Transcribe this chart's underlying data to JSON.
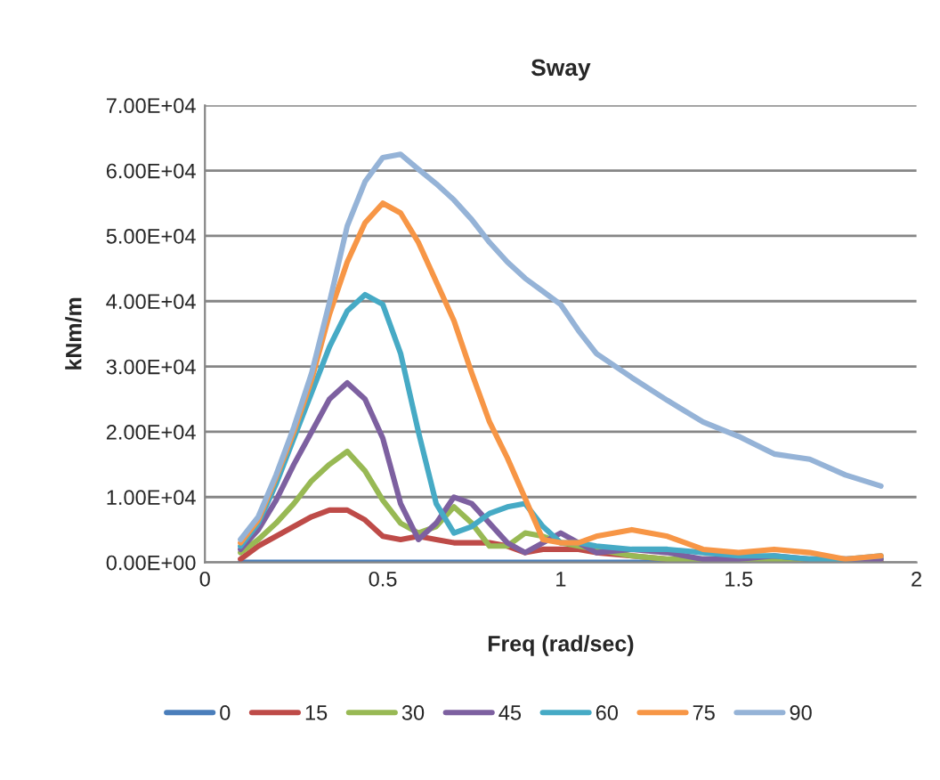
{
  "chart_data": {
    "type": "line",
    "title": "Sway",
    "xlabel": "Freq (rad/sec)",
    "ylabel": "kNm/m",
    "x": [
      0.1,
      0.15,
      0.2,
      0.25,
      0.3,
      0.35,
      0.4,
      0.45,
      0.5,
      0.55,
      0.6,
      0.65,
      0.7,
      0.75,
      0.8,
      0.85,
      0.9,
      0.95,
      1.0,
      1.05,
      1.1,
      1.2,
      1.3,
      1.4,
      1.5,
      1.6,
      1.7,
      1.8,
      1.9
    ],
    "series": [
      {
        "name": "0",
        "color": "#4a7ebb",
        "values": [
          0,
          0,
          0,
          0,
          0,
          0,
          0,
          0,
          0,
          0,
          0,
          0,
          0,
          0,
          0,
          0,
          0,
          0,
          0,
          0,
          0,
          0,
          0,
          0,
          0,
          0,
          0,
          0,
          0
        ]
      },
      {
        "name": "15",
        "color": "#be4b48",
        "values": [
          500,
          2500,
          4000,
          5500,
          7000,
          8000,
          8000,
          6500,
          4000,
          3500,
          4000,
          3500,
          3000,
          3000,
          3000,
          2500,
          1500,
          2000,
          2000,
          2000,
          1500,
          1000,
          500,
          0,
          0,
          0,
          0,
          0,
          0
        ]
      },
      {
        "name": "30",
        "color": "#98b954",
        "values": [
          1500,
          3500,
          6000,
          9000,
          12500,
          15000,
          17000,
          14000,
          9500,
          6000,
          4500,
          5500,
          8500,
          6000,
          2500,
          2500,
          4500,
          4000,
          3000,
          2500,
          2000,
          1000,
          500,
          500,
          500,
          500,
          500,
          0,
          500
        ]
      },
      {
        "name": "45",
        "color": "#7d60a0",
        "values": [
          2000,
          5000,
          9500,
          15000,
          20000,
          25000,
          27500,
          25000,
          19000,
          9000,
          3500,
          6000,
          10000,
          9000,
          6000,
          3000,
          1500,
          3000,
          4500,
          3000,
          1500,
          2000,
          1500,
          500,
          500,
          1000,
          500,
          500,
          500
        ]
      },
      {
        "name": "60",
        "color": "#46aac5",
        "values": [
          2500,
          6000,
          12000,
          19000,
          26000,
          33000,
          38500,
          41000,
          39500,
          32000,
          20000,
          9000,
          4500,
          5500,
          7500,
          8500,
          9000,
          5500,
          3000,
          3000,
          2500,
          2000,
          2000,
          1500,
          1000,
          1000,
          500,
          500,
          1000
        ]
      },
      {
        "name": "75",
        "color": "#f79646",
        "values": [
          3000,
          6500,
          13000,
          20000,
          28000,
          38000,
          46000,
          52000,
          55000,
          53500,
          49000,
          43000,
          37000,
          29000,
          21500,
          16000,
          9800,
          3500,
          3000,
          3000,
          4000,
          5000,
          4000,
          2000,
          1500,
          2000,
          1500,
          500,
          1000
        ]
      },
      {
        "name": "90",
        "color": "#95b3d7",
        "values": [
          3500,
          7000,
          13400,
          20700,
          29000,
          39800,
          51500,
          58300,
          62000,
          62500,
          60200,
          58000,
          55500,
          52500,
          49000,
          46000,
          43500,
          41500,
          39500,
          35500,
          32000,
          28300,
          24800,
          21500,
          19300,
          16600,
          15800,
          13400,
          11700
        ]
      }
    ],
    "xlim": [
      0,
      2
    ],
    "xticks": [
      0,
      0.5,
      1,
      1.5,
      2
    ],
    "ylim": [
      0,
      70000
    ],
    "yticks": [
      {
        "value": 0,
        "label": "0.00E+00"
      },
      {
        "value": 10000,
        "label": "1.00E+04"
      },
      {
        "value": 20000,
        "label": "2.00E+04"
      },
      {
        "value": 30000,
        "label": "3.00E+04"
      },
      {
        "value": 40000,
        "label": "4.00E+04"
      },
      {
        "value": 50000,
        "label": "5.00E+04"
      },
      {
        "value": 60000,
        "label": "6.00E+04"
      },
      {
        "value": 70000,
        "label": "7.00E+04"
      }
    ],
    "grid": "y",
    "legend": "bottom",
    "marker": "none",
    "line_style": "solid"
  }
}
